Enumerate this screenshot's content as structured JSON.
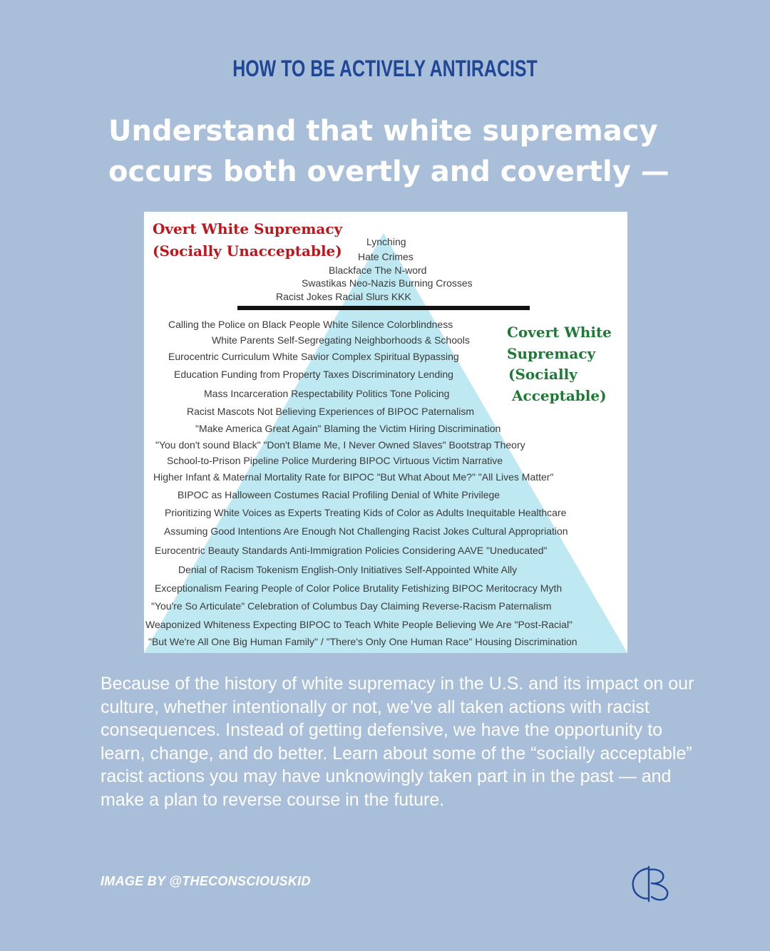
{
  "kicker": "HOW TO BE ACTIVELY ANTIRACIST",
  "headline": {
    "line1": "Understand that white supremacy",
    "line2": "occurs both overtly and covertly —"
  },
  "graphic": {
    "overt_label": {
      "line1": "Overt White Supremacy",
      "line2": "(Socially Unacceptable)"
    },
    "covert_label": {
      "line1": "Covert White",
      "line2": "Supremacy",
      "line3": "(Socially",
      "line4": "Acceptable)"
    },
    "overt_lines": [
      "Lynching",
      "Hate Crimes",
      "Blackface   The N-word",
      "Swastikas   Neo-Nazis   Burning Crosses",
      "Racist Jokes    Racial Slurs    KKK"
    ],
    "covert_lines": [
      "Calling the Police on Black People    White Silence    Colorblindness",
      "White Parents Self-Segregating Neighborhoods & Schools",
      "Eurocentric Curriculum    White Savior Complex    Spiritual Bypassing",
      "Education Funding from Property Taxes    Discriminatory Lending",
      "Mass Incarceration    Respectability Politics    Tone Policing",
      "Racist Mascots   Not Believing Experiences of BIPOC   Paternalism",
      "\"Make America Great Again\"     Blaming the Victim     Hiring Discrimination",
      "\"You don't sound Black\"    \"Don't Blame Me, I Never Owned Slaves\"   Bootstrap Theory",
      "School-to-Prison Pipeline      Police Murdering BIPOC      Virtuous Victim Narrative",
      "Higher Infant & Maternal Mortality Rate for BIPOC   \"But What About Me?\"   \"All Lives Matter\"",
      "BIPOC as Halloween Costumes        Racial Profiling        Denial of White Privilege",
      "Prioritizing White Voices as Experts    Treating Kids of Color as Adults    Inequitable Healthcare",
      "Assuming Good Intentions Are Enough    Not Challenging Racist Jokes    Cultural Appropriation",
      "Eurocentric Beauty Standards     Anti-Immigration Policies     Considering AAVE \"Uneducated\"",
      "Denial of Racism     Tokenism      English-Only Initiatives       Self-Appointed White Ally",
      "Exceptionalism   Fearing People of Color   Police Brutality   Fetishizing BIPOC   Meritocracy Myth",
      "\"You're So Articulate\"     Celebration of Columbus Day    Claiming Reverse-Racism     Paternalism",
      "Weaponized Whiteness    Expecting BIPOC to Teach White People  Believing We Are \"Post-Racial\"",
      "\"But We're All One Big Human Family\" / \"There's Only One Human Race\"     Housing Discrimination"
    ],
    "colors": {
      "triangle": "#bfe9f2",
      "overt_label": "#c0151b",
      "covert_label": "#1c7a35",
      "divider": "#111111"
    }
  },
  "body_text": "Because of the history of white supremacy in the U.S. and its impact on our culture, whether intentionally or not, we’ve all taken actions with racist consequences. Instead of getting defensive, we have the opportunity to learn, change, and do better. Learn about some of the “socially acceptable” racist actions you may have unknowingly taken part in in the past — and make a plan to reverse course in the future.",
  "credit": "IMAGE BY @THECONSCIOUSKID",
  "logo": "monogram-logo-icon",
  "colors": {
    "background": "#a9bed8",
    "kicker": "#1f4796",
    "text": "#ffffff"
  }
}
